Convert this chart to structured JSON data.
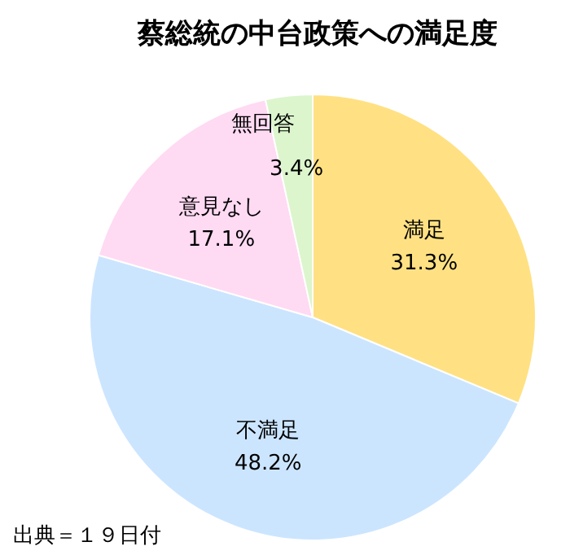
{
  "chart_data": {
    "type": "pie",
    "title": "蔡総統の中台政策への満足度",
    "categories": [
      "満足",
      "不満足",
      "意見なし",
      "無回答"
    ],
    "values": [
      31.3,
      48.2,
      17.1,
      3.4
    ],
    "value_labels": [
      "31.3%",
      "48.2%",
      "17.1%",
      "3.4%"
    ],
    "colors": [
      "#ffe183",
      "#cce5ff",
      "#ffdaf3",
      "#dcf5cd"
    ],
    "annotations": [
      "出典＝１９日付"
    ]
  }
}
